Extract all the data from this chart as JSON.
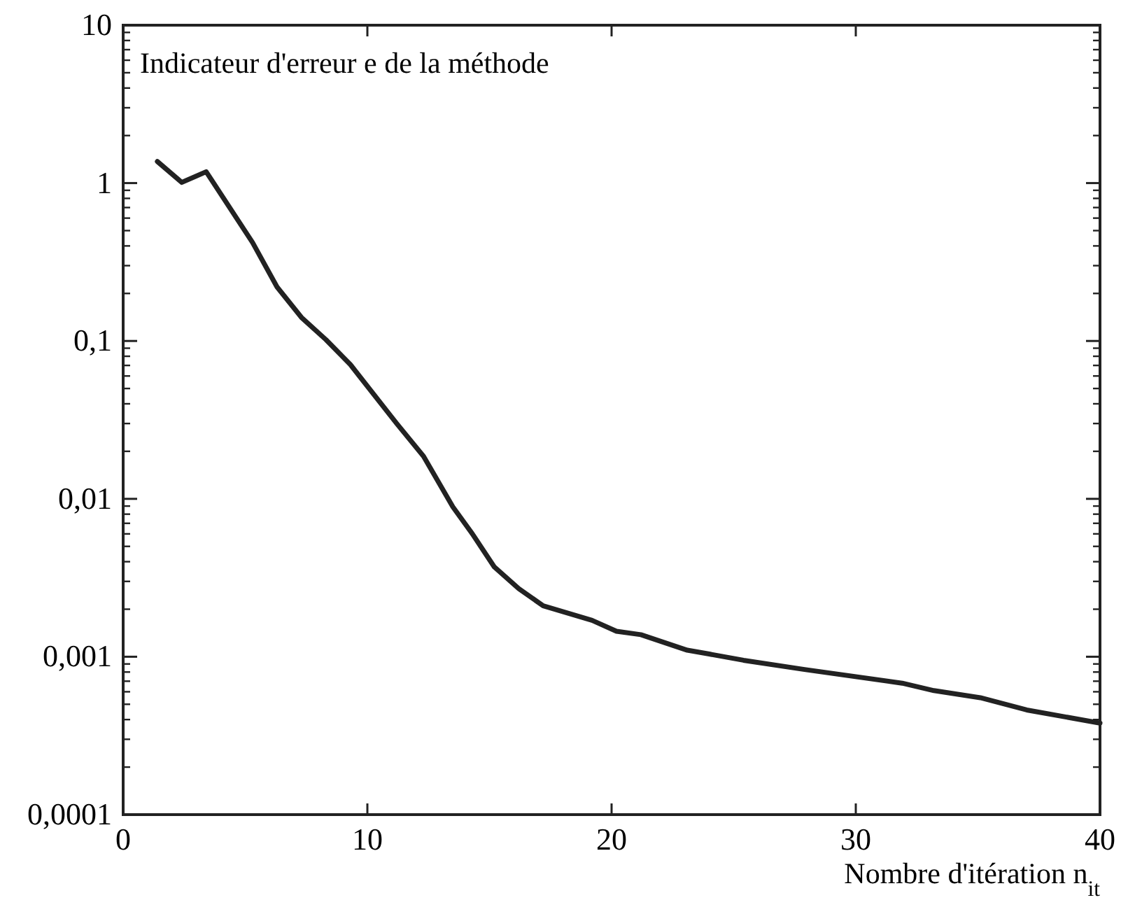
{
  "chart_data": {
    "type": "line",
    "xlabel": "Nombre d'itération n$_{it}$",
    "annotations": [
      "Indicateur d'erreur e de la méthode"
    ],
    "log": "y",
    "xlim": [
      0,
      40
    ],
    "xticks": [
      0,
      10,
      20,
      30,
      40
    ],
    "ylim": [
      0.0001,
      10
    ],
    "yticks": [
      {
        "value": 0.0001,
        "label": "0,0001"
      },
      {
        "value": 0.001,
        "label": "0,001"
      },
      {
        "value": 0.01,
        "label": "0,01"
      },
      {
        "value": 0.1,
        "label": "0,1"
      },
      1,
      10
    ],
    "grid": false,
    "marker": "none",
    "line_style": "solid",
    "series": [
      {
        "color": "#222222",
        "x": [
          1.4,
          2.4,
          3.4,
          5.3,
          6.3,
          7.3,
          8.3,
          9.3,
          11.2,
          12.3,
          13.5,
          14.3,
          15.2,
          16.2,
          17.2,
          19.2,
          20.2,
          21.2,
          23.1,
          24.0,
          25.4,
          27.9,
          31.9,
          33.2,
          35.1,
          37.0,
          40.0
        ],
        "values": [
          1.37,
          1.01,
          1.18,
          0.42,
          0.22,
          0.141,
          0.102,
          0.071,
          0.03,
          0.0186,
          0.0089,
          0.006,
          0.0037,
          0.0027,
          0.0021,
          0.0017,
          0.00145,
          0.00138,
          0.0011,
          0.00104,
          0.00095,
          0.00083,
          0.00068,
          0.00061,
          0.00055,
          0.00046,
          0.00038
        ]
      }
    ]
  }
}
